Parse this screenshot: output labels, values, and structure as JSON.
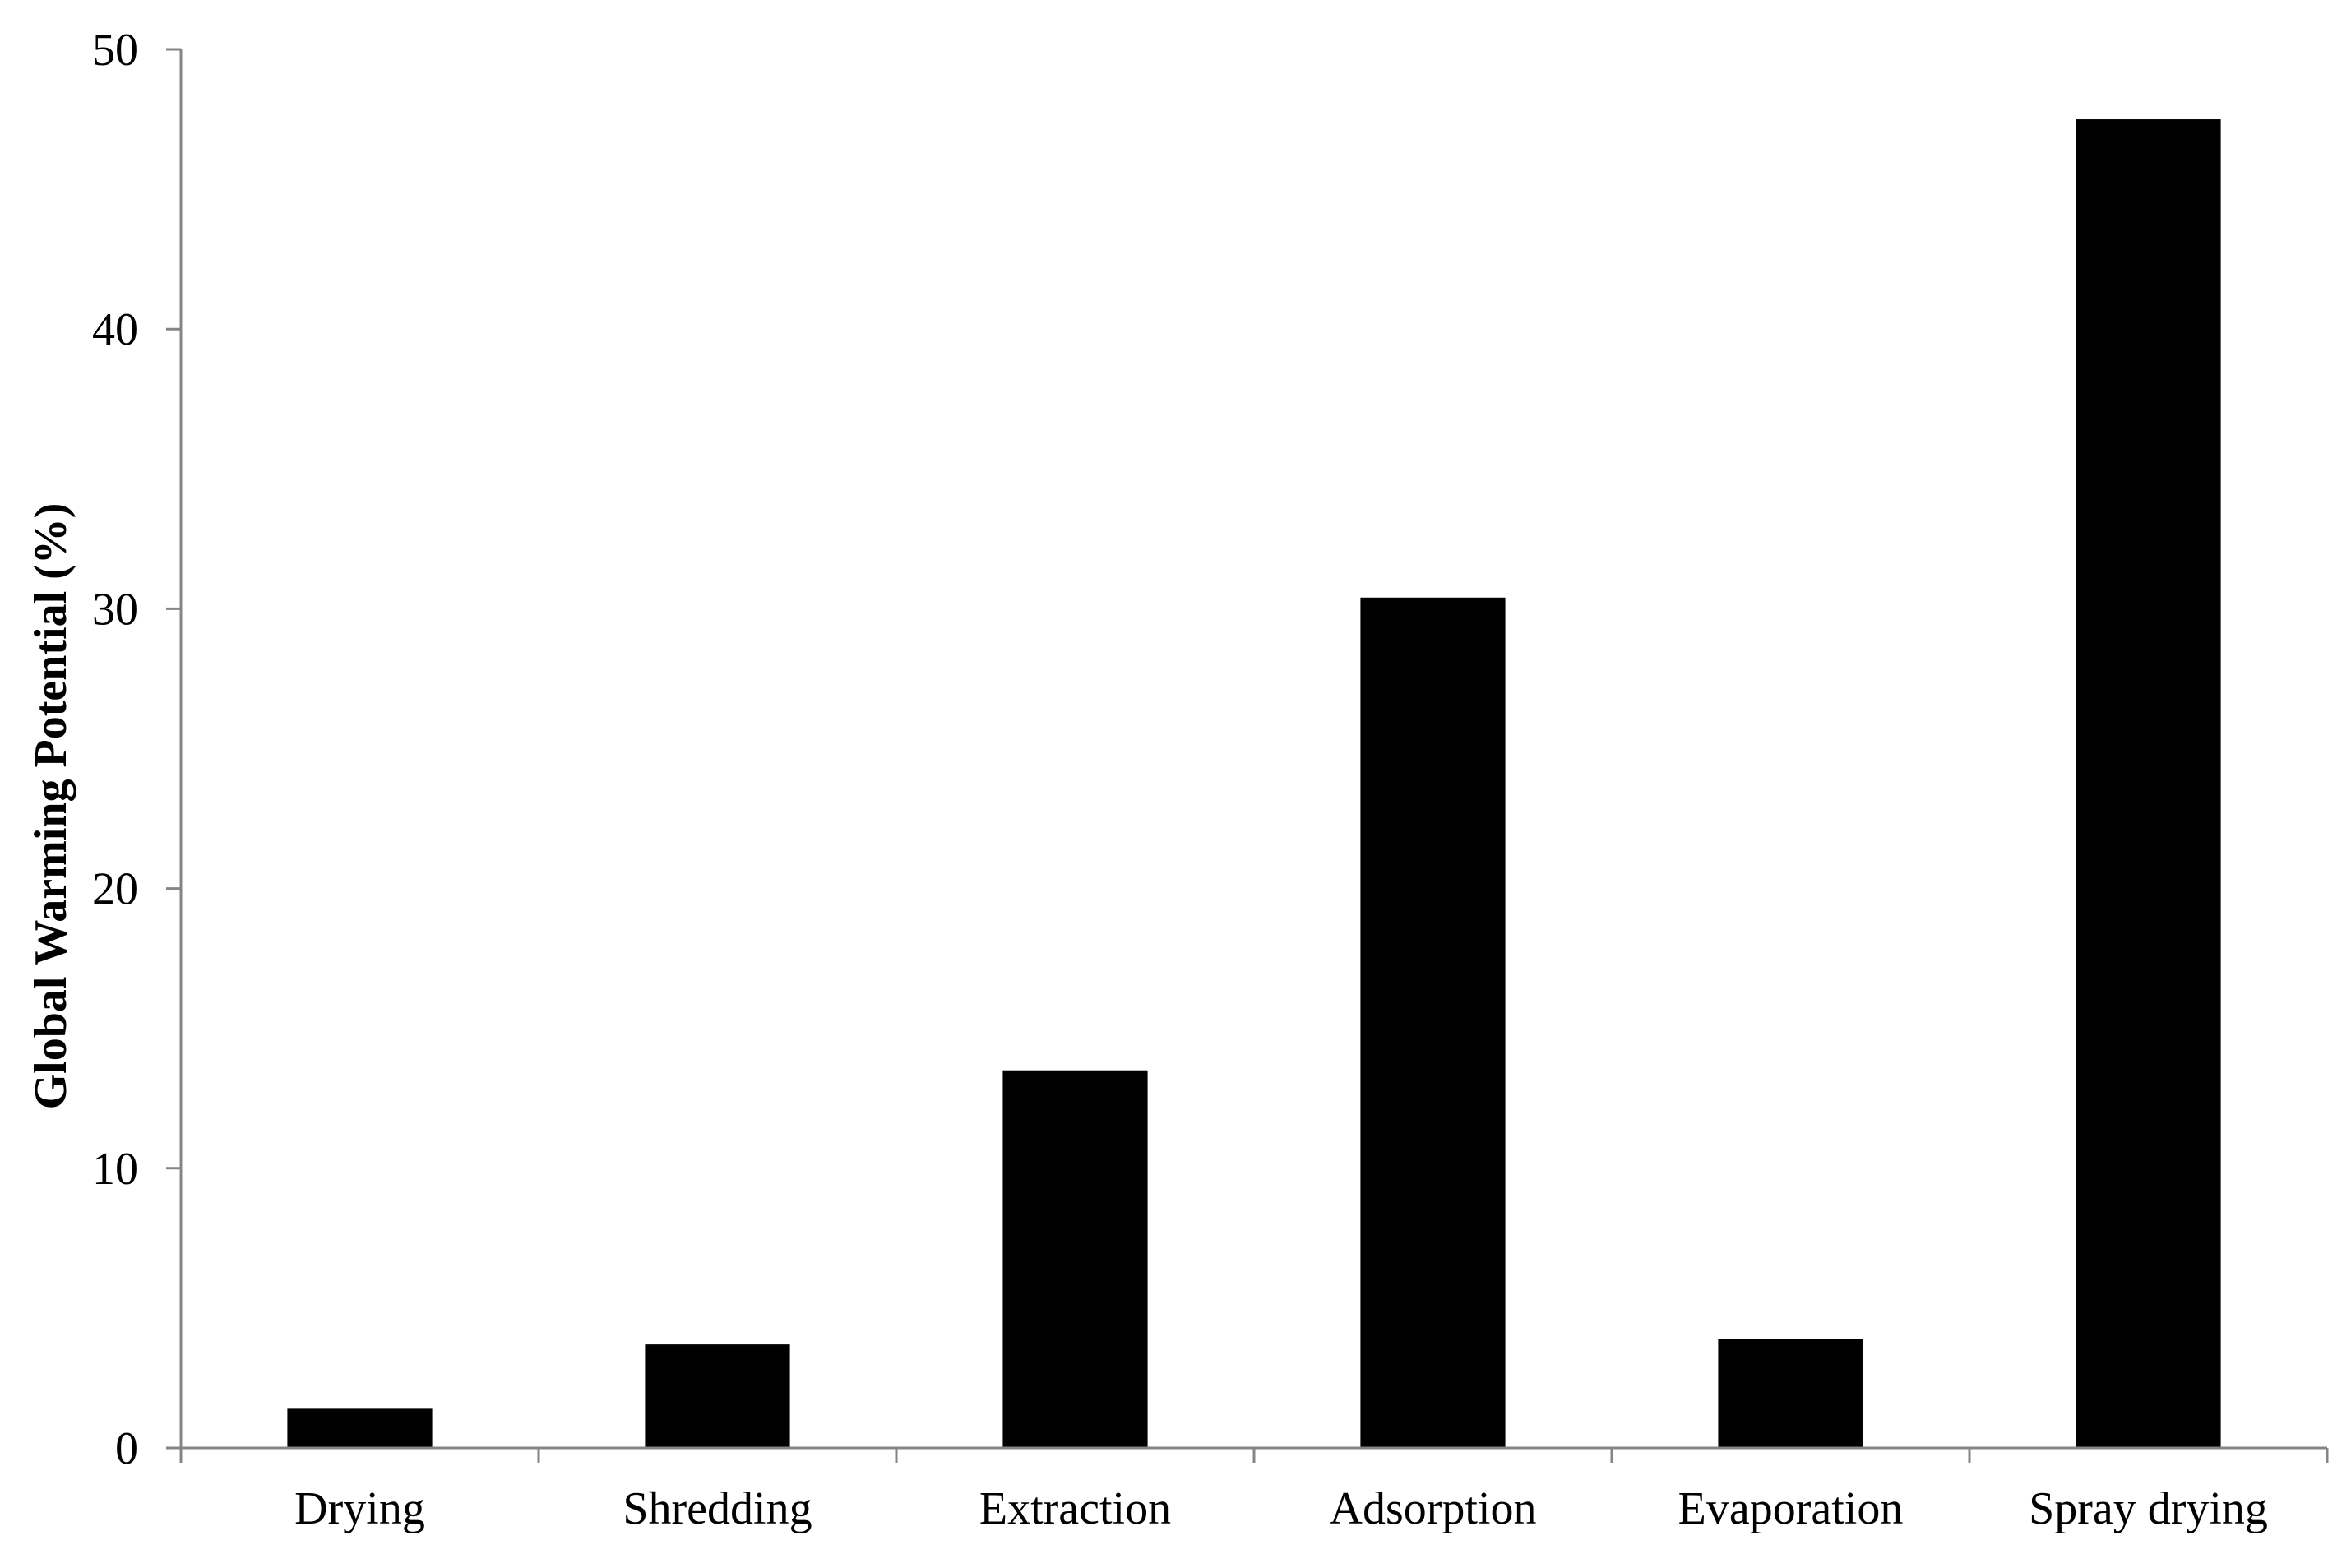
{
  "chart_data": {
    "type": "bar",
    "title": "",
    "xlabel": "",
    "ylabel": "Global Warming Potential (%)",
    "categories": [
      "Drying",
      "Shredding",
      "Extraction",
      "Adsorption",
      "Evaporation",
      "Spray drying"
    ],
    "values": [
      1.4,
      3.7,
      13.5,
      30.4,
      3.9,
      47.5
    ],
    "ylim": [
      0,
      50
    ],
    "yticks": [
      0,
      10,
      20,
      30,
      40,
      50
    ],
    "grid": false,
    "legend": "none",
    "bar_color": "#000000",
    "axis_color": "#858585"
  }
}
